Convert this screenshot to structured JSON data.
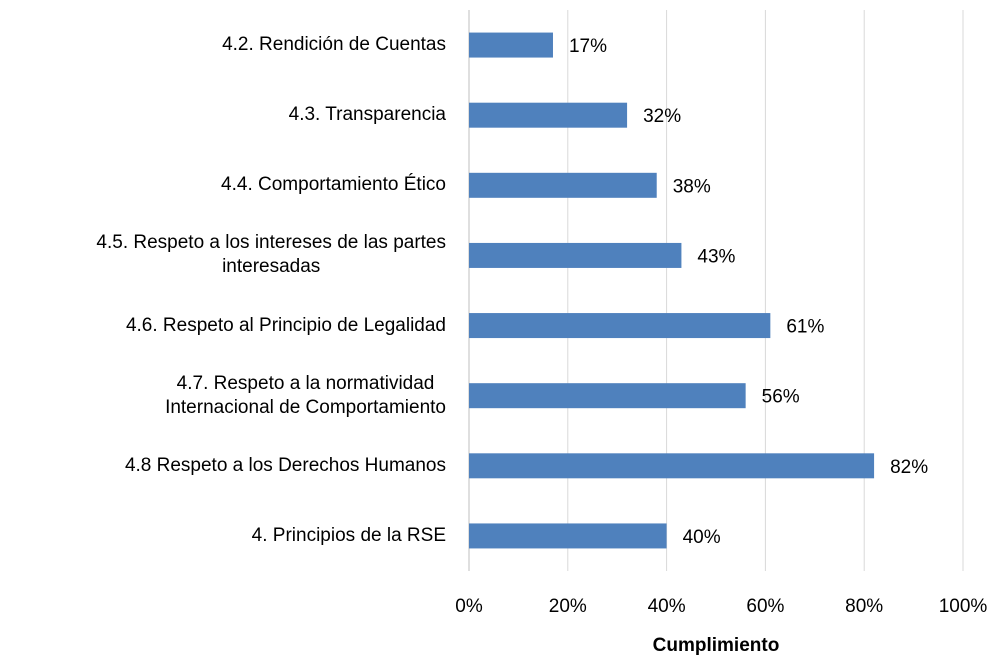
{
  "chart_data": {
    "type": "bar",
    "orientation": "horizontal",
    "categories": [
      "4.2. Rendición de Cuentas",
      "4.3. Transparencia",
      "4.4. Comportamiento Ético",
      "4.5. Respeto a los intereses de las partes\ninteresadas",
      "4.6. Respeto al Principio de Legalidad",
      "4.7. Respeto a la normatividad\nInternacional de Comportamiento",
      "4.8 Respeto a los Derechos Humanos",
      "4. Principios de la RSE"
    ],
    "values": [
      17,
      32,
      38,
      43,
      61,
      56,
      82,
      40
    ],
    "value_labels": [
      "17%",
      "32%",
      "38%",
      "43%",
      "61%",
      "56%",
      "82%",
      "40%"
    ],
    "color": "#4f81bd",
    "xlim": [
      0,
      100
    ],
    "xticks": [
      {
        "value": 0,
        "label": "0%"
      },
      {
        "value": 20,
        "label": "20%"
      },
      {
        "value": 40,
        "label": "40%"
      },
      {
        "value": 60,
        "label": "60%"
      },
      {
        "value": 80,
        "label": "80%"
      },
      {
        "value": 100,
        "label": "100%"
      }
    ],
    "x_label": "Cumplimiento",
    "grid": true
  }
}
